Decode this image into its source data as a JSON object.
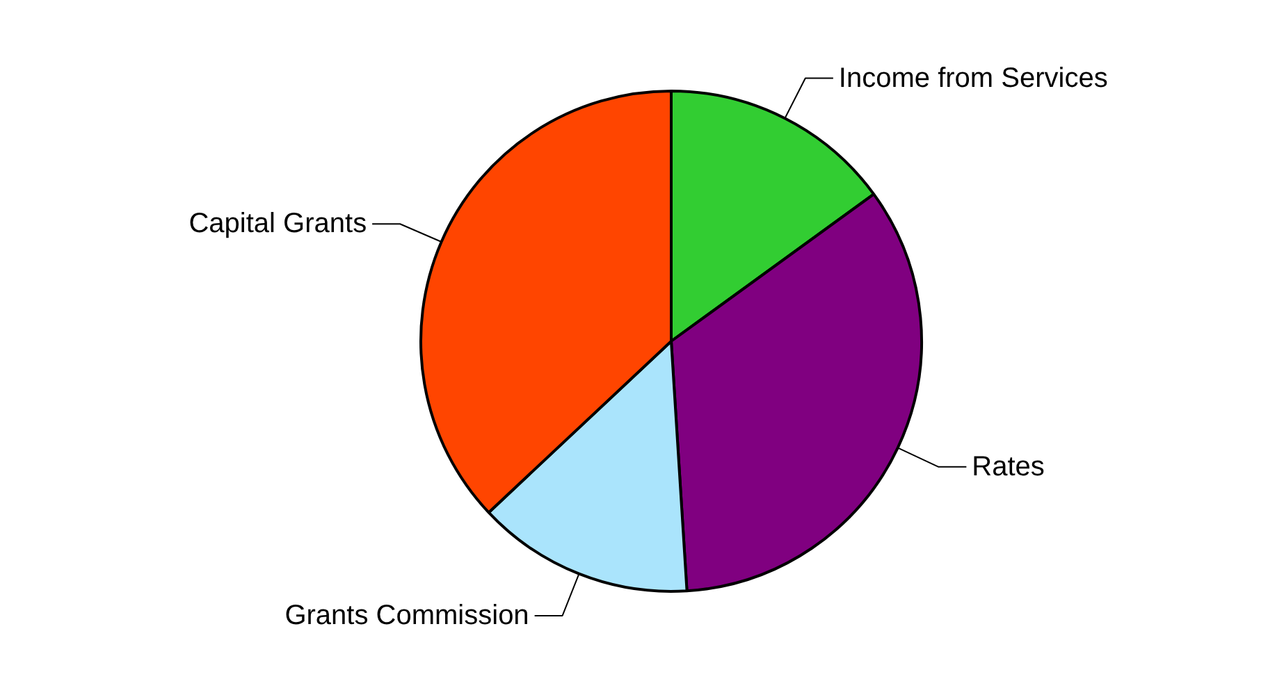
{
  "chart_data": {
    "type": "pie",
    "categories": [
      "Income from Services",
      "Rates",
      "Grants Commission",
      "Capital Grants"
    ],
    "values": [
      15,
      34,
      14,
      37
    ],
    "colors": [
      "#32cd32",
      "#800080",
      "#aae4fc",
      "#ff4500"
    ]
  }
}
